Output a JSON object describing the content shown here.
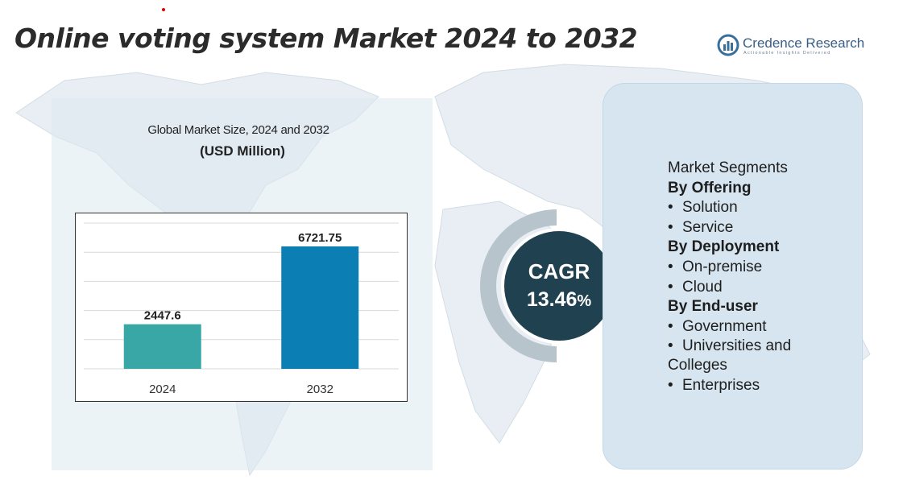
{
  "title": "Online voting system Market 2024 to 2032",
  "logo": {
    "name": "Credence Research",
    "tagline": "Actionable Insights Delivered",
    "icon": "bar-chart-icon"
  },
  "chart_data": {
    "type": "bar",
    "title": "Global Market Size, 2024 and 2032",
    "subtitle": "(USD Million)",
    "categories": [
      "2024",
      "2032"
    ],
    "values": [
      2447.6,
      6721.75
    ],
    "value_labels": [
      "2447.6",
      "6721.75"
    ],
    "colors": [
      "#39a7a5",
      "#0b7fb3"
    ],
    "ylim": [
      0,
      8000
    ],
    "grid": true
  },
  "cagr": {
    "label": "CAGR",
    "value": "13.46",
    "unit": "%"
  },
  "segments": {
    "heading": "Market Segments",
    "groups": [
      {
        "title": "By Offering",
        "items": [
          "Solution",
          "Service"
        ]
      },
      {
        "title": "By Deployment",
        "items": [
          "On-premise",
          "Cloud"
        ]
      },
      {
        "title": "By End-user",
        "items": [
          "Government",
          "Universities and",
          "Enterprises"
        ],
        "continuation": "Colleges"
      }
    ]
  },
  "colors": {
    "panel": "#dce9f1",
    "card": "#d6e5ef",
    "cagr_circle": "#1f4150"
  }
}
